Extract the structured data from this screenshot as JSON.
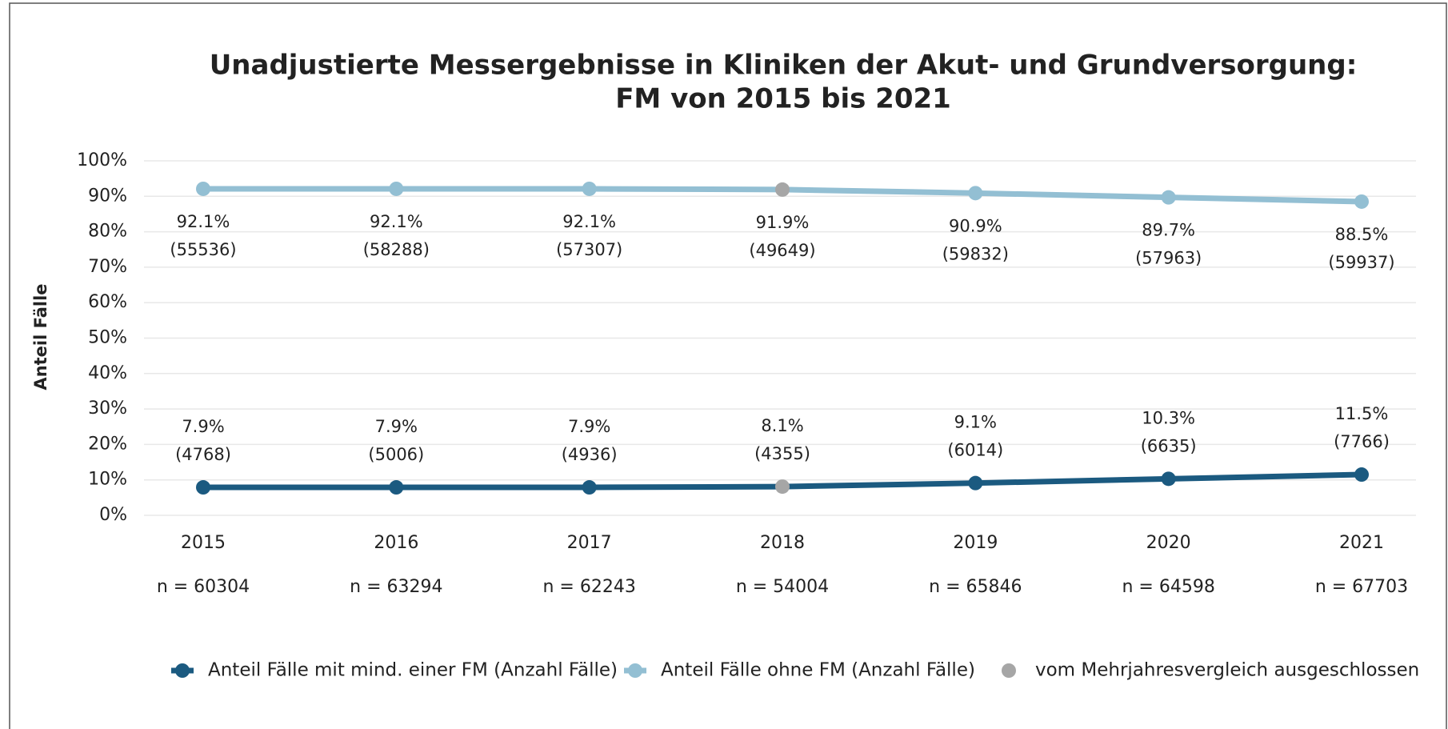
{
  "chart_data": {
    "type": "line",
    "title": "Unadjustierte Messergebnisse in Kliniken der Akut- und Grundversorgung:",
    "subtitle": "FM von 2015 bis 2021",
    "ylabel": "Anteil Fälle",
    "categories": [
      "2015",
      "2016",
      "2017",
      "2018",
      "2019",
      "2020",
      "2021"
    ],
    "n_labels": [
      "n = 60304",
      "n = 63294",
      "n = 62243",
      "n = 54004",
      "n = 65846",
      "n = 64598",
      "n = 67703"
    ],
    "series": [
      {
        "name": "Anteil Fälle mit mind. einer FM (Anzahl Fälle)",
        "color": "#1b5a80",
        "values": [
          7.9,
          7.9,
          7.9,
          8.1,
          9.1,
          10.3,
          11.5
        ],
        "value_labels": [
          "7.9%",
          "7.9%",
          "7.9%",
          "8.1%",
          "9.1%",
          "10.3%",
          "11.5%"
        ],
        "count_labels": [
          "(4768)",
          "(5006)",
          "(4936)",
          "(4355)",
          "(6014)",
          "(6635)",
          "(7766)"
        ]
      },
      {
        "name": "Anteil Fälle ohne FM (Anzahl Fälle)",
        "color": "#93bfd3",
        "values": [
          92.1,
          92.1,
          92.1,
          91.9,
          90.9,
          89.7,
          88.5
        ],
        "value_labels": [
          "92.1%",
          "92.1%",
          "92.1%",
          "91.9%",
          "90.9%",
          "89.7%",
          "88.5%"
        ],
        "count_labels": [
          "(55536)",
          "(58288)",
          "(57307)",
          "(49649)",
          "(59832)",
          "(57963)",
          "(59937)"
        ]
      }
    ],
    "excluded": {
      "name": "vom Mehrjahresvergleich ausgeschlossen",
      "color": "#a6a6a6",
      "index": 3
    },
    "ylim": [
      0,
      100
    ],
    "yticks": [
      {
        "value": 0,
        "label": "0%"
      },
      {
        "value": 10,
        "label": "10%"
      },
      {
        "value": 20,
        "label": "20%"
      },
      {
        "value": 30,
        "label": "30%"
      },
      {
        "value": 40,
        "label": "40%"
      },
      {
        "value": 50,
        "label": "50%"
      },
      {
        "value": 60,
        "label": "60%"
      },
      {
        "value": 70,
        "label": "70%"
      },
      {
        "value": 80,
        "label": "80%"
      },
      {
        "value": 90,
        "label": "90%"
      },
      {
        "value": 100,
        "label": "100%"
      }
    ],
    "grid": true
  }
}
